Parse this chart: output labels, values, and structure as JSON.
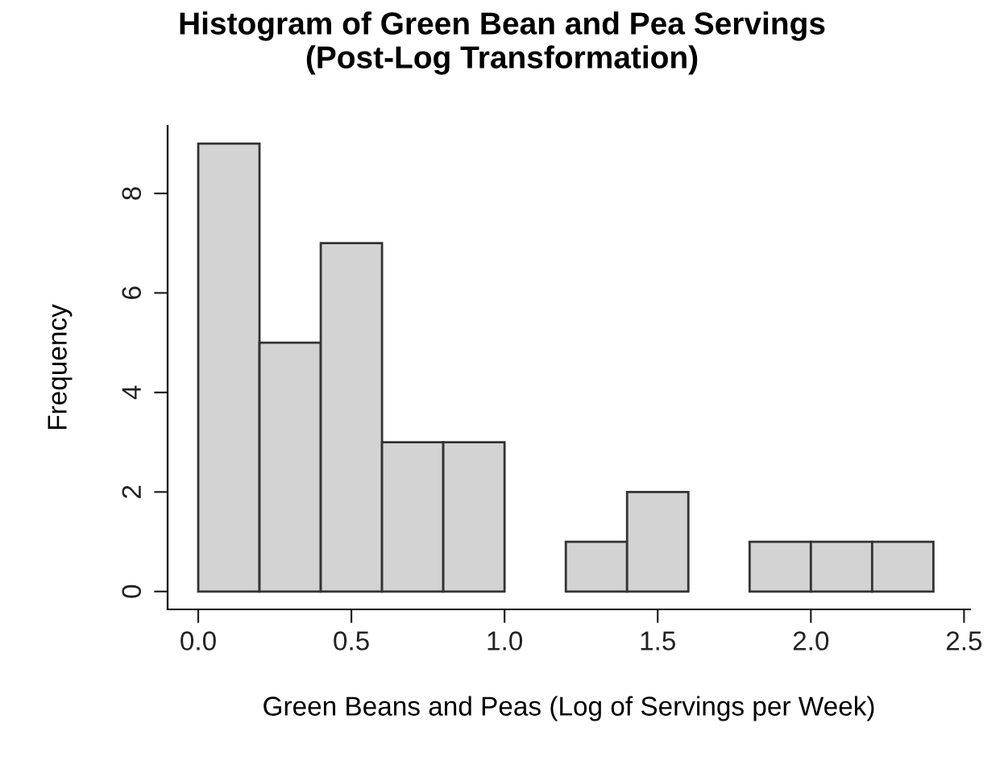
{
  "chart_data": {
    "type": "histogram",
    "title": "Histogram of Green Bean and Pea Servings\n(Post-Log Transformation)",
    "xlabel": "Green Beans and Peas (Log of Servings per Week)",
    "ylabel": "Frequency",
    "bins": [
      0,
      0.2,
      0.4,
      0.6,
      0.8,
      1.0,
      1.2,
      1.4,
      1.6,
      1.8,
      2.0,
      2.2,
      2.4
    ],
    "values": [
      9,
      5,
      7,
      3,
      3,
      0,
      1,
      2,
      0,
      1,
      1,
      1
    ],
    "color": "#d3d3d3",
    "xlim": [
      -0.1,
      2.52
    ],
    "ylim": [
      -0.36,
      9.36
    ],
    "xticks": [
      {
        "value": 0,
        "label": "0.0"
      },
      {
        "value": 0.5,
        "label": "0.5"
      },
      {
        "value": 1.0,
        "label": "1.0"
      },
      {
        "value": 1.5,
        "label": "1.5"
      },
      {
        "value": 2.0,
        "label": "2.0"
      },
      {
        "value": 2.5,
        "label": "2.5"
      }
    ],
    "yticks": [
      0,
      2,
      4,
      6,
      8
    ],
    "grid": false
  }
}
